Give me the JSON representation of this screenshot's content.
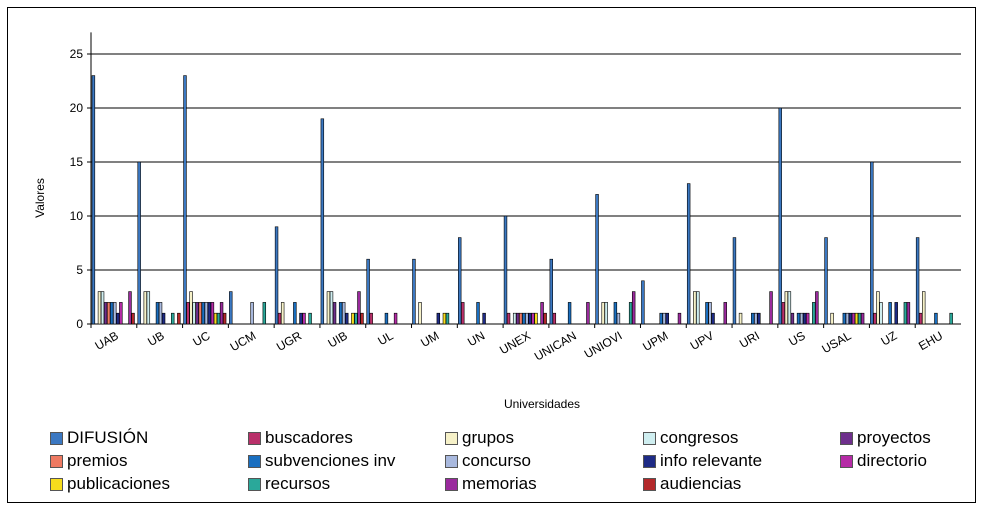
{
  "chart_data": {
    "type": "bar",
    "xlabel": "Universidades",
    "ylabel": "Valores",
    "ylim": [
      0,
      27
    ],
    "yticks": [
      0,
      5,
      10,
      15,
      20,
      25
    ],
    "grid": true,
    "legend_placement": "bottom",
    "categories": [
      "UAB",
      "UB",
      "UC",
      "UCM",
      "UGR",
      "UIB",
      "UL",
      "UM",
      "UN",
      "UNEX",
      "UNICAN",
      "UNIOVI",
      "UPM",
      "UPV",
      "URI",
      "US",
      "USAL",
      "UZ",
      "EHU"
    ],
    "series": [
      {
        "name": "DIFUSIÓN",
        "color": "#3b78c2",
        "values": [
          23,
          15,
          23,
          3,
          9,
          19,
          6,
          6,
          8,
          10,
          6,
          12,
          4,
          13,
          8,
          20,
          8,
          15,
          8
        ]
      },
      {
        "name": "buscadores",
        "color": "#b9306a",
        "values": [
          0,
          0,
          2,
          0,
          1,
          0,
          1,
          0,
          2,
          1,
          1,
          0,
          0,
          0,
          0,
          2,
          0,
          1,
          1
        ]
      },
      {
        "name": "grupos",
        "color": "#f6f1c8",
        "values": [
          3,
          3,
          3,
          0,
          2,
          3,
          0,
          2,
          0,
          0,
          0,
          2,
          0,
          3,
          1,
          3,
          1,
          3,
          3
        ]
      },
      {
        "name": "congresos",
        "color": "#cfeef0",
        "values": [
          3,
          3,
          2,
          0,
          0,
          3,
          0,
          0,
          0,
          1,
          0,
          2,
          0,
          3,
          0,
          3,
          0,
          2,
          0
        ]
      },
      {
        "name": "proyectos",
        "color": "#6e2f8c",
        "values": [
          2,
          0,
          2,
          0,
          0,
          2,
          0,
          0,
          0,
          1,
          0,
          0,
          0,
          0,
          0,
          1,
          0,
          0,
          0
        ]
      },
      {
        "name": "premios",
        "color": "#ee7a62",
        "values": [
          2,
          0,
          2,
          0,
          0,
          0,
          0,
          0,
          0,
          1,
          0,
          0,
          0,
          0,
          0,
          0,
          0,
          0,
          0
        ]
      },
      {
        "name": "subvenciones inv",
        "color": "#1a6fc0",
        "values": [
          2,
          2,
          2,
          0,
          2,
          2,
          1,
          0,
          2,
          1,
          2,
          2,
          1,
          2,
          1,
          1,
          1,
          2,
          1
        ]
      },
      {
        "name": "concurso",
        "color": "#a9b9de",
        "values": [
          2,
          2,
          2,
          2,
          0,
          2,
          0,
          0,
          0,
          1,
          0,
          1,
          1,
          2,
          1,
          1,
          1,
          0,
          0
        ]
      },
      {
        "name": "info relevante",
        "color": "#1e2b86",
        "values": [
          1,
          1,
          2,
          0,
          1,
          1,
          0,
          1,
          1,
          1,
          0,
          0,
          1,
          1,
          1,
          1,
          1,
          2,
          0
        ]
      },
      {
        "name": "directorio",
        "color": "#b52ba6",
        "values": [
          2,
          0,
          2,
          0,
          1,
          0,
          1,
          0,
          0,
          1,
          0,
          0,
          0,
          0,
          0,
          1,
          1,
          0,
          0
        ]
      },
      {
        "name": "publicaciones",
        "color": "#f6dc1d",
        "values": [
          0,
          0,
          1,
          0,
          0,
          1,
          0,
          1,
          0,
          1,
          0,
          0,
          0,
          0,
          0,
          0,
          1,
          0,
          0
        ]
      },
      {
        "name": "recursos",
        "color": "#2aa89a",
        "values": [
          0,
          1,
          1,
          2,
          1,
          1,
          0,
          1,
          0,
          0,
          0,
          2,
          0,
          0,
          0,
          2,
          1,
          2,
          1
        ]
      },
      {
        "name": "memorias",
        "color": "#9a2a9d",
        "values": [
          3,
          0,
          2,
          0,
          0,
          3,
          0,
          0,
          0,
          2,
          2,
          3,
          1,
          2,
          3,
          3,
          1,
          2,
          0
        ]
      },
      {
        "name": "audiencias",
        "color": "#b3282a",
        "values": [
          1,
          1,
          1,
          0,
          0,
          1,
          0,
          0,
          0,
          1,
          0,
          0,
          0,
          0,
          0,
          0,
          0,
          0,
          0
        ]
      }
    ]
  }
}
